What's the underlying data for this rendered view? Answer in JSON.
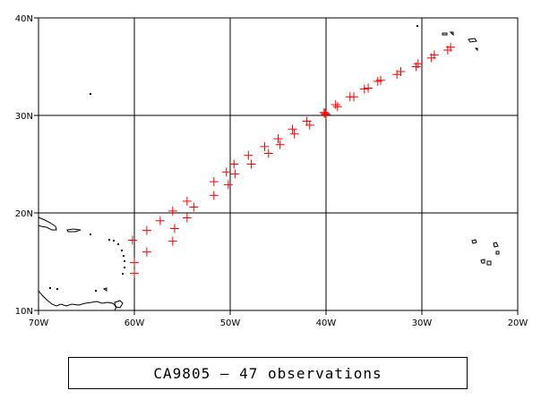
{
  "chart_data": {
    "type": "scatter",
    "title": "CA9805 – 47 observations",
    "xlim": [
      -70,
      -20
    ],
    "ylim": [
      10,
      40
    ],
    "grid": true,
    "x_ticks": [
      {
        "value": -70,
        "label": "70W"
      },
      {
        "value": -60,
        "label": "60W"
      },
      {
        "value": -50,
        "label": "50W"
      },
      {
        "value": -40,
        "label": "40W"
      },
      {
        "value": -30,
        "label": "30W"
      },
      {
        "value": -20,
        "label": "20W"
      }
    ],
    "y_ticks": [
      {
        "value": 10,
        "label": "10N"
      },
      {
        "value": 20,
        "label": "20N"
      },
      {
        "value": 30,
        "label": "30N"
      },
      {
        "value": 40,
        "label": "40N"
      }
    ],
    "marker_color": "#ff0000",
    "marker": "plus",
    "points": [
      {
        "lon": -60.0,
        "lat": 13.8
      },
      {
        "lon": -60.0,
        "lat": 14.9
      },
      {
        "lon": -58.7,
        "lat": 16.0
      },
      {
        "lon": -56.0,
        "lat": 17.1
      },
      {
        "lon": -60.2,
        "lat": 17.2
      },
      {
        "lon": -58.7,
        "lat": 18.2
      },
      {
        "lon": -55.8,
        "lat": 18.4
      },
      {
        "lon": -57.3,
        "lat": 19.2
      },
      {
        "lon": -54.5,
        "lat": 19.5
      },
      {
        "lon": -56.0,
        "lat": 20.2
      },
      {
        "lon": -53.8,
        "lat": 20.6
      },
      {
        "lon": -54.5,
        "lat": 21.2
      },
      {
        "lon": -51.7,
        "lat": 21.8
      },
      {
        "lon": -50.2,
        "lat": 22.9
      },
      {
        "lon": -51.7,
        "lat": 23.2
      },
      {
        "lon": -49.5,
        "lat": 24.0
      },
      {
        "lon": -50.4,
        "lat": 24.2
      },
      {
        "lon": -49.6,
        "lat": 25.0
      },
      {
        "lon": -47.8,
        "lat": 25.0
      },
      {
        "lon": -48.1,
        "lat": 25.9
      },
      {
        "lon": -46.0,
        "lat": 26.1
      },
      {
        "lon": -46.4,
        "lat": 26.8
      },
      {
        "lon": -44.8,
        "lat": 27.0
      },
      {
        "lon": -45.0,
        "lat": 27.6
      },
      {
        "lon": -43.3,
        "lat": 28.1
      },
      {
        "lon": -43.5,
        "lat": 28.6
      },
      {
        "lon": -41.7,
        "lat": 29.0
      },
      {
        "lon": -42.0,
        "lat": 29.4
      },
      {
        "lon": -40.2,
        "lat": 30.3
      },
      {
        "lon": -40.1,
        "lat": 30.2
      },
      {
        "lon": -38.8,
        "lat": 30.9
      },
      {
        "lon": -39.0,
        "lat": 31.1
      },
      {
        "lon": -37.5,
        "lat": 31.9
      },
      {
        "lon": -37.1,
        "lat": 31.9
      },
      {
        "lon": -36.0,
        "lat": 32.7
      },
      {
        "lon": -35.6,
        "lat": 32.8
      },
      {
        "lon": -34.6,
        "lat": 33.5
      },
      {
        "lon": -34.3,
        "lat": 33.6
      },
      {
        "lon": -32.6,
        "lat": 34.2
      },
      {
        "lon": -32.2,
        "lat": 34.5
      },
      {
        "lon": -30.6,
        "lat": 35.0
      },
      {
        "lon": -30.4,
        "lat": 35.3
      },
      {
        "lon": -29.0,
        "lat": 35.9
      },
      {
        "lon": -28.7,
        "lat": 36.2
      },
      {
        "lon": -27.3,
        "lat": 36.7
      },
      {
        "lon": -27.0,
        "lat": 37.0
      },
      {
        "lon": -40.0,
        "lat": 30.1
      }
    ]
  }
}
